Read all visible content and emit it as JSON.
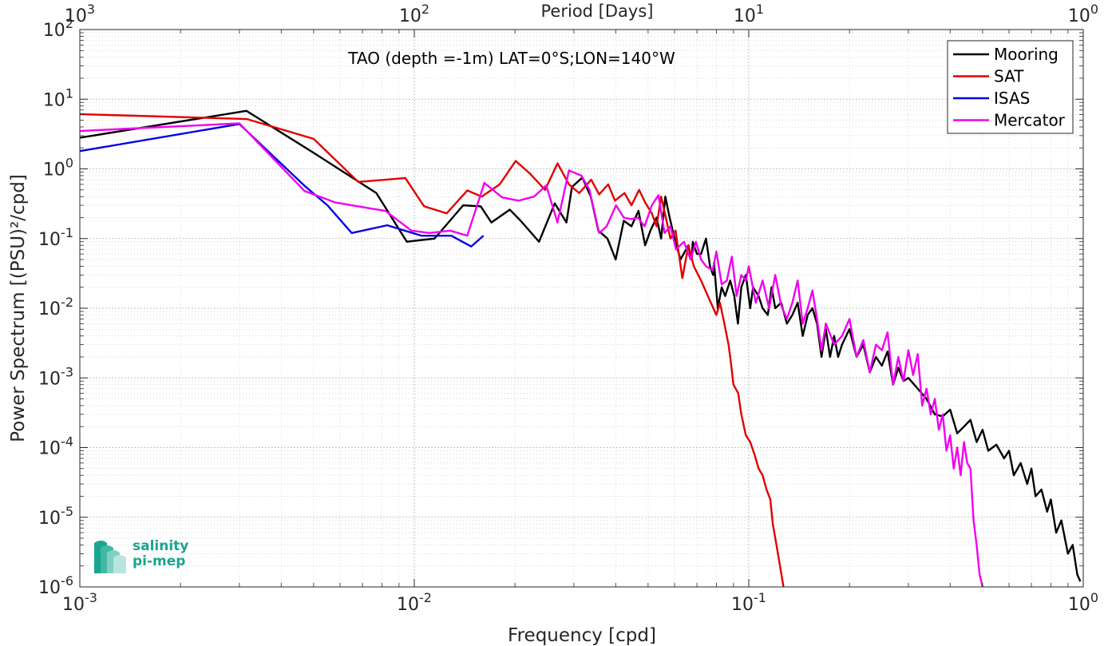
{
  "chart_data": {
    "type": "line",
    "title": "TAO (depth =-1m) LAT=0°S;LON=140°W",
    "xlabel": "Frequency [cpd]",
    "ylabel": "Power Spectrum [(PSU)²/cpd]",
    "top_xlabel": "Period [Days]",
    "x_scale": "log",
    "y_scale": "log",
    "xlim": [
      0.001,
      1
    ],
    "ylim": [
      1e-06,
      100
    ],
    "grid": true,
    "legend_position": "top-right",
    "x_ticks": [
      {
        "value": 0.001,
        "base": "10",
        "exp": "-3"
      },
      {
        "value": 0.01,
        "base": "10",
        "exp": "-2"
      },
      {
        "value": 0.1,
        "base": "10",
        "exp": "-1"
      },
      {
        "value": 1,
        "base": "10",
        "exp": "0"
      }
    ],
    "top_ticks": [
      {
        "value": 0.001,
        "base": "10",
        "exp": "3"
      },
      {
        "value": 0.01,
        "base": "10",
        "exp": "2"
      },
      {
        "value": 0.1,
        "base": "10",
        "exp": "1"
      },
      {
        "value": 1,
        "base": "10",
        "exp": "0"
      }
    ],
    "y_ticks": [
      {
        "value": 100,
        "base": "10",
        "exp": "2"
      },
      {
        "value": 10,
        "base": "10",
        "exp": "1"
      },
      {
        "value": 1,
        "base": "10",
        "exp": "0"
      },
      {
        "value": 0.1,
        "base": "10",
        "exp": "-1"
      },
      {
        "value": 0.01,
        "base": "10",
        "exp": "-2"
      },
      {
        "value": 0.001,
        "base": "10",
        "exp": "-3"
      },
      {
        "value": 0.0001,
        "base": "10",
        "exp": "-4"
      },
      {
        "value": 1e-05,
        "base": "10",
        "exp": "-5"
      },
      {
        "value": 1e-06,
        "base": "10",
        "exp": "-6"
      }
    ],
    "series": [
      {
        "name": "Mooring",
        "color": "#000000",
        "points": [
          [
            0.001,
            2.8
          ],
          [
            0.00315,
            6.8
          ],
          [
            0.005,
            1.7
          ],
          [
            0.0077,
            0.45
          ],
          [
            0.0095,
            0.09
          ],
          [
            0.0115,
            0.1
          ],
          [
            0.014,
            0.3
          ],
          [
            0.0158,
            0.29
          ],
          [
            0.017,
            0.17
          ],
          [
            0.0193,
            0.26
          ],
          [
            0.0208,
            0.18
          ],
          [
            0.0236,
            0.09
          ],
          [
            0.0263,
            0.32
          ],
          [
            0.0285,
            0.17
          ],
          [
            0.0296,
            0.55
          ],
          [
            0.0318,
            0.75
          ],
          [
            0.0337,
            0.4
          ],
          [
            0.0355,
            0.13
          ],
          [
            0.0378,
            0.1
          ],
          [
            0.04,
            0.05
          ],
          [
            0.0423,
            0.18
          ],
          [
            0.0446,
            0.15
          ],
          [
            0.0468,
            0.25
          ],
          [
            0.049,
            0.08
          ],
          [
            0.0508,
            0.13
          ],
          [
            0.053,
            0.2
          ],
          [
            0.0547,
            0.1
          ],
          [
            0.0563,
            0.4
          ],
          [
            0.058,
            0.2
          ],
          [
            0.06,
            0.1
          ],
          [
            0.0625,
            0.05
          ],
          [
            0.066,
            0.08
          ],
          [
            0.0675,
            0.05
          ],
          [
            0.068,
            0.09
          ],
          [
            0.07,
            0.06
          ],
          [
            0.072,
            0.06
          ],
          [
            0.0745,
            0.1
          ],
          [
            0.0766,
            0.04
          ],
          [
            0.0782,
            0.03
          ],
          [
            0.0787,
            0.045
          ],
          [
            0.0808,
            0.01
          ],
          [
            0.083,
            0.02
          ],
          [
            0.085,
            0.015
          ],
          [
            0.088,
            0.025
          ],
          [
            0.0905,
            0.015
          ],
          [
            0.0928,
            0.006
          ],
          [
            0.095,
            0.02
          ],
          [
            0.098,
            0.03
          ],
          [
            0.101,
            0.01
          ],
          [
            0.103,
            0.02
          ],
          [
            0.107,
            0.015
          ],
          [
            0.11,
            0.01
          ],
          [
            0.114,
            0.008
          ],
          [
            0.117,
            0.02
          ],
          [
            0.12,
            0.01
          ],
          [
            0.125,
            0.012
          ],
          [
            0.13,
            0.006
          ],
          [
            0.135,
            0.008
          ],
          [
            0.14,
            0.012
          ],
          [
            0.145,
            0.004
          ],
          [
            0.15,
            0.008
          ],
          [
            0.155,
            0.01
          ],
          [
            0.16,
            0.006
          ],
          [
            0.165,
            0.002
          ],
          [
            0.17,
            0.005
          ],
          [
            0.175,
            0.002
          ],
          [
            0.18,
            0.004
          ],
          [
            0.185,
            0.002
          ],
          [
            0.19,
            0.003
          ],
          [
            0.2,
            0.005
          ],
          [
            0.21,
            0.002
          ],
          [
            0.22,
            0.003
          ],
          [
            0.23,
            0.0012
          ],
          [
            0.24,
            0.002
          ],
          [
            0.25,
            0.0015
          ],
          [
            0.26,
            0.0024
          ],
          [
            0.27,
            0.0008
          ],
          [
            0.28,
            0.0014
          ],
          [
            0.29,
            0.0009
          ],
          [
            0.3,
            0.001
          ],
          [
            0.32,
            0.0007
          ],
          [
            0.34,
            0.0005
          ],
          [
            0.36,
            0.0003
          ],
          [
            0.38,
            0.00028
          ],
          [
            0.4,
            0.00035
          ],
          [
            0.42,
            0.00016
          ],
          [
            0.44,
            0.0002
          ],
          [
            0.46,
            0.00025
          ],
          [
            0.48,
            0.00012
          ],
          [
            0.5,
            0.00018
          ],
          [
            0.52,
            9e-05
          ],
          [
            0.55,
            0.00011
          ],
          [
            0.58,
            7e-05
          ],
          [
            0.6,
            9e-05
          ],
          [
            0.62,
            4e-05
          ],
          [
            0.65,
            6e-05
          ],
          [
            0.68,
            3e-05
          ],
          [
            0.7,
            5e-05
          ],
          [
            0.72,
            2e-05
          ],
          [
            0.75,
            2.5e-05
          ],
          [
            0.78,
            1.2e-05
          ],
          [
            0.8,
            1.8e-05
          ],
          [
            0.83,
            6e-06
          ],
          [
            0.86,
            9e-06
          ],
          [
            0.9,
            3e-06
          ],
          [
            0.93,
            4e-06
          ],
          [
            0.96,
            1.5e-06
          ],
          [
            0.98,
            1.2e-06
          ]
        ]
      },
      {
        "name": "SAT",
        "color": "#e00000",
        "points": [
          [
            0.001,
            6.1
          ],
          [
            0.00315,
            5.2
          ],
          [
            0.005,
            2.7
          ],
          [
            0.0068,
            0.65
          ],
          [
            0.0082,
            0.7
          ],
          [
            0.0094,
            0.74
          ],
          [
            0.0107,
            0.29
          ],
          [
            0.0125,
            0.23
          ],
          [
            0.0144,
            0.49
          ],
          [
            0.0159,
            0.4
          ],
          [
            0.018,
            0.6
          ],
          [
            0.0201,
            1.3
          ],
          [
            0.0222,
            0.85
          ],
          [
            0.0246,
            0.5
          ],
          [
            0.0268,
            1.2
          ],
          [
            0.029,
            0.6
          ],
          [
            0.0311,
            0.45
          ],
          [
            0.0338,
            0.7
          ],
          [
            0.0357,
            0.43
          ],
          [
            0.038,
            0.6
          ],
          [
            0.0398,
            0.35
          ],
          [
            0.0425,
            0.45
          ],
          [
            0.0446,
            0.3
          ],
          [
            0.047,
            0.5
          ],
          [
            0.049,
            0.33
          ],
          [
            0.0513,
            0.23
          ],
          [
            0.053,
            0.15
          ],
          [
            0.0547,
            0.4
          ],
          [
            0.0565,
            0.2
          ],
          [
            0.0583,
            0.1
          ],
          [
            0.0604,
            0.13
          ],
          [
            0.0633,
            0.027
          ],
          [
            0.066,
            0.08
          ],
          [
            0.0685,
            0.04
          ],
          [
            0.072,
            0.025
          ],
          [
            0.075,
            0.016
          ],
          [
            0.08,
            0.008
          ],
          [
            0.082,
            0.012
          ],
          [
            0.084,
            0.007
          ],
          [
            0.087,
            0.003
          ],
          [
            0.088,
            0.002
          ],
          [
            0.09,
            0.0008
          ],
          [
            0.093,
            0.0006
          ],
          [
            0.095,
            0.0003
          ],
          [
            0.098,
            0.00015
          ],
          [
            0.101,
            0.00012
          ],
          [
            0.104,
            8e-05
          ],
          [
            0.107,
            5e-05
          ],
          [
            0.11,
            4e-05
          ],
          [
            0.113,
            2.5e-05
          ],
          [
            0.116,
            1.8e-05
          ],
          [
            0.118,
            8e-06
          ],
          [
            0.121,
            4e-06
          ],
          [
            0.124,
            2e-06
          ],
          [
            0.127,
            1e-06
          ]
        ]
      },
      {
        "name": "ISAS",
        "color": "#0000e6",
        "points": [
          [
            0.001,
            1.8
          ],
          [
            0.003,
            4.4
          ],
          [
            0.0047,
            0.57
          ],
          [
            0.0055,
            0.3
          ],
          [
            0.0065,
            0.12
          ],
          [
            0.0083,
            0.155
          ],
          [
            0.0105,
            0.11
          ],
          [
            0.0129,
            0.11
          ],
          [
            0.0148,
            0.077
          ],
          [
            0.0161,
            0.11
          ]
        ]
      },
      {
        "name": "Mercator",
        "color": "#f000f0",
        "points": [
          [
            0.001,
            3.5
          ],
          [
            0.003,
            4.5
          ],
          [
            0.0047,
            0.48
          ],
          [
            0.0058,
            0.33
          ],
          [
            0.0074,
            0.27
          ],
          [
            0.0082,
            0.25
          ],
          [
            0.0098,
            0.13
          ],
          [
            0.0111,
            0.12
          ],
          [
            0.0128,
            0.13
          ],
          [
            0.0144,
            0.11
          ],
          [
            0.0162,
            0.63
          ],
          [
            0.0183,
            0.39
          ],
          [
            0.0205,
            0.35
          ],
          [
            0.0228,
            0.4
          ],
          [
            0.0248,
            0.58
          ],
          [
            0.0268,
            0.17
          ],
          [
            0.029,
            0.95
          ],
          [
            0.0316,
            0.8
          ],
          [
            0.0334,
            0.5
          ],
          [
            0.0357,
            0.12
          ],
          [
            0.0376,
            0.15
          ],
          [
            0.0401,
            0.3
          ],
          [
            0.0423,
            0.2
          ],
          [
            0.0445,
            0.19
          ],
          [
            0.0466,
            0.2
          ],
          [
            0.0488,
            0.15
          ],
          [
            0.0513,
            0.3
          ],
          [
            0.0537,
            0.42
          ],
          [
            0.056,
            0.12
          ],
          [
            0.0583,
            0.15
          ],
          [
            0.0606,
            0.07
          ],
          [
            0.064,
            0.09
          ],
          [
            0.067,
            0.05
          ],
          [
            0.0695,
            0.09
          ],
          [
            0.072,
            0.05
          ],
          [
            0.0745,
            0.04
          ],
          [
            0.078,
            0.035
          ],
          [
            0.08,
            0.065
          ],
          [
            0.083,
            0.022
          ],
          [
            0.086,
            0.025
          ],
          [
            0.089,
            0.055
          ],
          [
            0.092,
            0.015
          ],
          [
            0.095,
            0.03
          ],
          [
            0.098,
            0.025
          ],
          [
            0.1,
            0.04
          ],
          [
            0.105,
            0.012
          ],
          [
            0.11,
            0.025
          ],
          [
            0.115,
            0.01
          ],
          [
            0.12,
            0.03
          ],
          [
            0.125,
            0.011
          ],
          [
            0.13,
            0.007
          ],
          [
            0.135,
            0.012
          ],
          [
            0.14,
            0.025
          ],
          [
            0.145,
            0.006
          ],
          [
            0.15,
            0.01
          ],
          [
            0.155,
            0.018
          ],
          [
            0.16,
            0.007
          ],
          [
            0.165,
            0.0025
          ],
          [
            0.17,
            0.006
          ],
          [
            0.18,
            0.003
          ],
          [
            0.19,
            0.004
          ],
          [
            0.2,
            0.007
          ],
          [
            0.21,
            0.002
          ],
          [
            0.22,
            0.0035
          ],
          [
            0.23,
            0.0012
          ],
          [
            0.24,
            0.003
          ],
          [
            0.25,
            0.0025
          ],
          [
            0.26,
            0.0045
          ],
          [
            0.27,
            0.0008
          ],
          [
            0.28,
            0.002
          ],
          [
            0.29,
            0.0009
          ],
          [
            0.3,
            0.0025
          ],
          [
            0.31,
            0.0011
          ],
          [
            0.32,
            0.0022
          ],
          [
            0.33,
            0.0004
          ],
          [
            0.34,
            0.0007
          ],
          [
            0.35,
            0.0003
          ],
          [
            0.36,
            0.0005
          ],
          [
            0.37,
            0.00018
          ],
          [
            0.38,
            0.0003
          ],
          [
            0.39,
            9e-05
          ],
          [
            0.4,
            0.00015
          ],
          [
            0.41,
            5e-05
          ],
          [
            0.42,
            0.0001
          ],
          [
            0.43,
            4e-05
          ],
          [
            0.44,
            0.00012
          ],
          [
            0.45,
            6e-05
          ],
          [
            0.46,
            5e-05
          ],
          [
            0.47,
            9e-06
          ],
          [
            0.48,
            4e-06
          ],
          [
            0.49,
            1.5e-06
          ],
          [
            0.5,
            1e-06
          ]
        ]
      }
    ]
  },
  "logo": {
    "line1": "salinity",
    "line2": "pi-mep"
  }
}
